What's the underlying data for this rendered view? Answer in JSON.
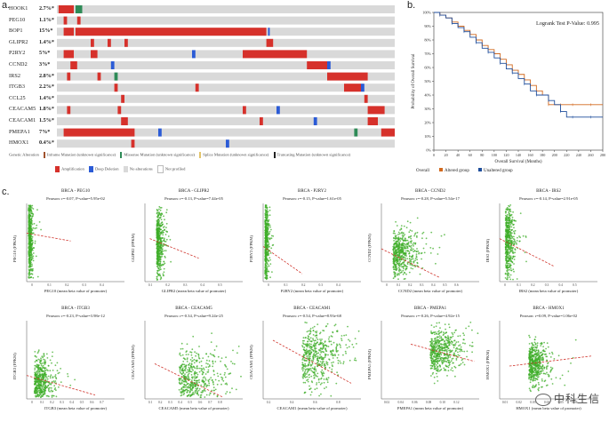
{
  "panel_a": {
    "label": "a.",
    "genes": [
      {
        "name": "HOOK1",
        "pct": "2.7%*"
      },
      {
        "name": "PEG10",
        "pct": "1.1%*"
      },
      {
        "name": "BOP1",
        "pct": "15%*"
      },
      {
        "name": "GLIPR2",
        "pct": "1.4%*"
      },
      {
        "name": "P2RY2",
        "pct": "5%*"
      },
      {
        "name": "CCND2",
        "pct": "3%*"
      },
      {
        "name": "IRS2",
        "pct": "2.8%*"
      },
      {
        "name": "ITGB3",
        "pct": "2.2%*"
      },
      {
        "name": "CCL25",
        "pct": "1.4%*"
      },
      {
        "name": "CEACAM5",
        "pct": "1.8%*"
      },
      {
        "name": "CEACAM1",
        "pct": "1.5%*"
      },
      {
        "name": "PMEPA1",
        "pct": "7%*"
      },
      {
        "name": "HMOX1",
        "pct": "0.4%*"
      }
    ],
    "legend": {
      "genetic_alteration": "Genetic Alteration",
      "row1": [
        "Inframe Mutation (unknown significance)",
        "Missense Mutation (unknown significance)",
        "Splice Mutation (unknown significance)",
        "Truncating Mutation (unknown significance)"
      ],
      "row2": [
        "Amplification",
        "Deep Deletion",
        "No alterations",
        "Not profiled"
      ]
    },
    "colors": {
      "amp": "#d6312b",
      "del": "#2b5bd6",
      "none": "#d9d9d9",
      "inframe": "#a0522d",
      "missense": "#2e8b57",
      "splice": "#e3c46a",
      "trunc": "#222222"
    }
  },
  "panel_b": {
    "label": "b.",
    "pvalue_text": "Logrank Test P-Value: 0.995",
    "legend_overall": "Overall",
    "legend_altered": "Altered group",
    "legend_unaltered": "Unaltered group",
    "colors": {
      "altered": "#d2691e",
      "unaltered": "#1f4e9c"
    }
  },
  "panel_c": {
    "label": "c."
  },
  "chart_data": [
    {
      "type": "line",
      "title": "Overall Survival",
      "xlabel": "Overall Survival (Months)",
      "ylabel": "Probability of Overall Survival",
      "xlim": [
        0,
        280
      ],
      "ylim": [
        0,
        100
      ],
      "xticks": [
        "0",
        "20",
        "40",
        "60",
        "80",
        "100",
        "120",
        "140",
        "160",
        "180",
        "200",
        "220",
        "240",
        "260",
        "280"
      ],
      "yticks": [
        "0%",
        "10%",
        "20%",
        "30%",
        "40%",
        "50%",
        "60%",
        "70%",
        "80%",
        "90%",
        "100%"
      ],
      "series": [
        {
          "name": "Altered group",
          "x": [
            0,
            10,
            20,
            30,
            40,
            50,
            60,
            70,
            80,
            90,
            100,
            110,
            120,
            130,
            140,
            150,
            160,
            170,
            180,
            190,
            200,
            210,
            220,
            230,
            240,
            260,
            280
          ],
          "y": [
            100,
            98,
            96,
            93,
            90,
            87,
            84,
            80,
            76,
            73,
            70,
            66,
            62,
            58,
            55,
            51,
            47,
            43,
            40,
            33,
            33,
            33,
            33,
            33,
            33,
            33,
            33
          ]
        },
        {
          "name": "Unaltered group",
          "x": [
            0,
            10,
            20,
            30,
            40,
            50,
            60,
            70,
            80,
            90,
            100,
            110,
            120,
            130,
            140,
            150,
            160,
            170,
            180,
            190,
            200,
            210,
            220,
            230,
            240,
            260,
            280
          ],
          "y": [
            100,
            98,
            96,
            92,
            89,
            86,
            82,
            78,
            74,
            71,
            67,
            63,
            59,
            56,
            52,
            48,
            43,
            40,
            40,
            36,
            33,
            28,
            24,
            24,
            24,
            24,
            24
          ]
        }
      ]
    },
    {
      "type": "scatter",
      "title": "BRCA - PEG10",
      "subtitle": "Pearson: r=-0.07, P-value=5.95e-02",
      "xlabel": "PEG10 (mean beta value of promoter)",
      "ylabel": "PEG10 (FPKM)",
      "xticks": [
        "0",
        "0.1",
        "0.2",
        "0.3",
        "0.4"
      ],
      "r": -0.07,
      "x_center": 0.02,
      "x_spread": 0.02,
      "y_center": 0.6,
      "y_spread": 0.3,
      "trend": [
        [
          0.0,
          0.62
        ],
        [
          0.45,
          0.52
        ]
      ]
    },
    {
      "type": "scatter",
      "title": "BRCA - GLIPR2",
      "subtitle": "Pearson: r=-0.13, P-value=7.44e-05",
      "xlabel": "GLIPR2 (mean beta value of promoter)",
      "ylabel": "GLIPR2 (FPKM)",
      "xticks": [
        "0.1",
        "0.2",
        "0.3",
        "0.4",
        "0.5"
      ],
      "r": -0.13,
      "x_center": 0.12,
      "x_spread": 0.03,
      "y_center": 0.5,
      "y_spread": 0.22,
      "trend": [
        [
          0.05,
          0.55
        ],
        [
          0.55,
          0.3
        ]
      ]
    },
    {
      "type": "scatter",
      "title": "BRCA - P2RY2",
      "subtitle": "Pearson: r=-0.15, P-value=1.61e-05",
      "xlabel": "P2RY2 (mean beta value of promoter)",
      "ylabel": "P2RY2 (FPKM)",
      "xticks": [
        "0",
        "0.1",
        "0.2",
        "0.3",
        "0.4"
      ],
      "r": -0.15,
      "x_center": 0.02,
      "x_spread": 0.015,
      "y_center": 0.5,
      "y_spread": 0.28,
      "trend": [
        [
          0.0,
          0.45
        ],
        [
          0.4,
          0.1
        ]
      ]
    },
    {
      "type": "scatter",
      "title": "BRCA - CCND2",
      "subtitle": "Pearson: r=-0.28, P-value=5.54e-17",
      "xlabel": "CCND2 (mean beta value of promoter)",
      "ylabel": "CCND2 (FPKM)",
      "xticks": [
        "0",
        "0.1",
        "0.2",
        "0.3",
        "0.4",
        "0.5",
        "0.6"
      ],
      "r": -0.28,
      "x_center": 0.12,
      "x_spread": 0.1,
      "y_center": 0.35,
      "y_spread": 0.15,
      "trend": [
        [
          0.0,
          0.42
        ],
        [
          0.6,
          0.05
        ]
      ]
    },
    {
      "type": "scatter",
      "title": "BRCA - IRS2",
      "subtitle": "Pearson: r=-0.14, P-value=2.91e-05",
      "xlabel": "IRS2 (mean beta value of promoter)",
      "ylabel": "IRS2 (FPKM)",
      "xticks": [
        "0",
        "0.1",
        "0.2",
        "0.3",
        "0.4",
        "0.5"
      ],
      "r": -0.14,
      "x_center": 0.06,
      "x_spread": 0.04,
      "y_center": 0.55,
      "y_spread": 0.25,
      "trend": [
        [
          0.0,
          0.55
        ],
        [
          0.55,
          0.2
        ]
      ]
    },
    {
      "type": "scatter",
      "title": "BRCA - ITGB3",
      "subtitle": "Pearson: r=-0.23, P-value=3.98e-12",
      "xlabel": "ITGB3 (mean beta value of promoter)",
      "ylabel": "ITGB3 (FPKM)",
      "xticks": [
        "0",
        "0.1",
        "0.2",
        "0.3",
        "0.4",
        "0.5",
        "0.6",
        "0.7"
      ],
      "r": -0.23,
      "x_center": 0.08,
      "x_spread": 0.08,
      "y_center": 0.2,
      "y_spread": 0.15,
      "trend": [
        [
          0.0,
          0.3
        ],
        [
          0.7,
          0.05
        ]
      ]
    },
    {
      "type": "scatter",
      "title": "BRCA - CEACAM5",
      "subtitle": "Pearson: r=-0.34, P-value=9.24e-25",
      "xlabel": "CEACAM5 (mean beta value of promoter)",
      "ylabel": "CEACAM5 (FPKM)",
      "xticks": [
        "0.1",
        "0.2",
        "0.3",
        "0.4",
        "0.5",
        "0.6",
        "0.7",
        "0.8"
      ],
      "r": -0.34,
      "x_center": 0.35,
      "x_spread": 0.2,
      "y_center": 0.2,
      "y_spread": 0.2,
      "trend": [
        [
          0.1,
          0.45
        ],
        [
          0.8,
          0.02
        ]
      ]
    },
    {
      "type": "scatter",
      "title": "BRCA - CEACAM1",
      "subtitle": "Pearson: r=-0.54, P-value=8.93e-68",
      "xlabel": "CEACAM1 (mean beta value of promoter)",
      "ylabel": "CEACAM1 (FPKM)",
      "xticks": [
        "0.2",
        "0.4",
        "0.6",
        "0.8"
      ],
      "r": -0.54,
      "x_center": 0.4,
      "x_spread": 0.18,
      "y_center": 0.5,
      "y_spread": 0.2,
      "trend": [
        [
          0.1,
          0.75
        ],
        [
          0.9,
          0.2
        ]
      ]
    },
    {
      "type": "scatter",
      "title": "BRCA - PMEPA1",
      "subtitle": "Pearson: r=-0.26, P-value=4.92e-15",
      "xlabel": "PMEPA1 (mean beta value of promoter)",
      "ylabel": "PMEPA1 (FPKM)",
      "xticks": [
        "0.02",
        "0.04",
        "0.06",
        "0.08",
        "0.10",
        "0.12"
      ],
      "r": -0.26,
      "x_center": 0.5,
      "x_spread": 0.15,
      "y_center": 0.6,
      "y_spread": 0.14,
      "trend": [
        [
          0.3,
          0.7
        ],
        [
          0.95,
          0.48
        ]
      ]
    },
    {
      "type": "scatter",
      "title": "BRCA - HMOX1",
      "subtitle": "Pearson: r=0.09, P-value=1.06e-02",
      "xlabel": "HMOX1 (mean beta value of promoter)",
      "ylabel": "HMOX1 (FPKM)",
      "xticks": [
        "0.01",
        "0.02",
        "0.03",
        "0.04",
        "0.05",
        "0.06"
      ],
      "r": 0.09,
      "x_center": 0.3,
      "x_spread": 0.08,
      "y_center": 0.45,
      "y_spread": 0.14,
      "trend": [
        [
          0.1,
          0.42
        ],
        [
          0.95,
          0.55
        ]
      ]
    }
  ],
  "watermark": "中科生信"
}
